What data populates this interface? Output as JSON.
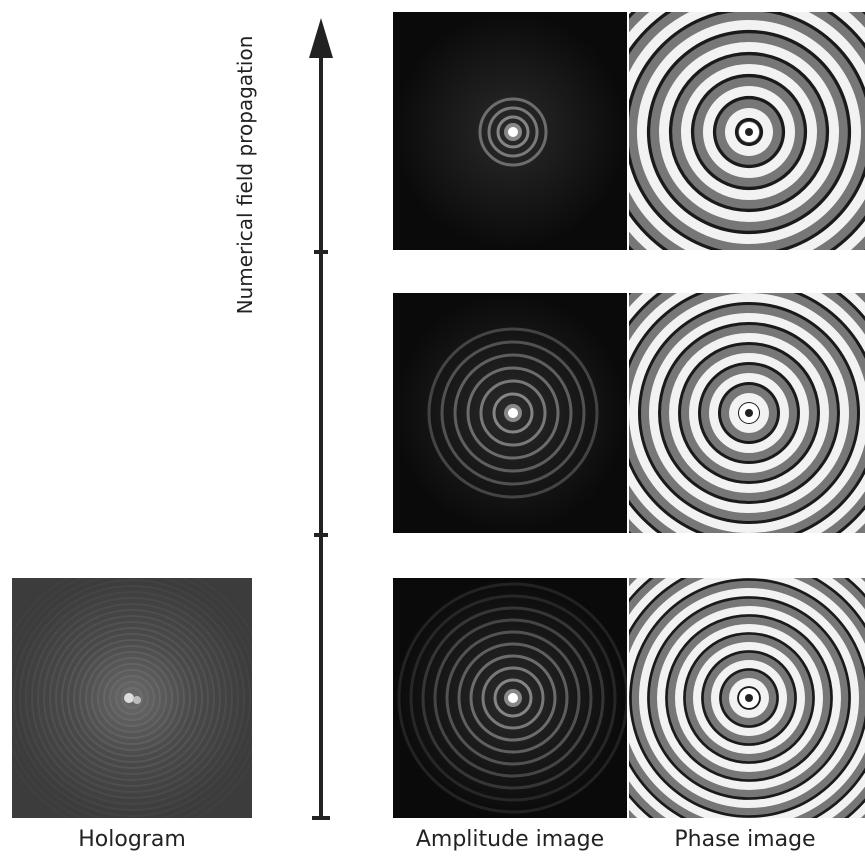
{
  "axis_label": "Numerical field propagation",
  "captions": {
    "hologram": "Hologram",
    "amplitude": "Amplitude image",
    "phase": "Phase image"
  }
}
